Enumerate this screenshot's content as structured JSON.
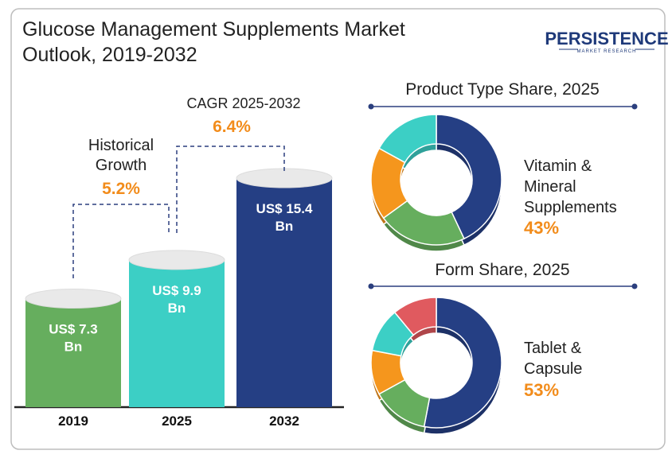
{
  "title_line1": "Glucose Management Supplements Market",
  "title_line2": "Outlook, 2019-2032",
  "logo": {
    "name": "PERSISTENCE",
    "tagline": "MARKET RESEARCH"
  },
  "annotations": {
    "historical_line1": "Historical",
    "historical_line2": "Growth",
    "historical_value": "5.2%",
    "cagr_label": "CAGR 2025-2032",
    "cagr_value": "6.4%"
  },
  "colors": {
    "green": "#66ae5e",
    "teal": "#3ccfc5",
    "navy": "#253f84",
    "orange": "#f5961d",
    "red": "#e05a5f",
    "accent_text": "#f28c1b"
  },
  "chart_data": [
    {
      "type": "bar",
      "categories": [
        "2019",
        "2025",
        "2032"
      ],
      "values": [
        7.3,
        9.9,
        15.4
      ],
      "value_labels": [
        [
          "US$ 7.3",
          "Bn"
        ],
        [
          "US$ 9.9",
          "Bn"
        ],
        [
          "US$ 15.4",
          "Bn"
        ]
      ],
      "bar_colors": [
        "#66ae5e",
        "#3ccfc5",
        "#253f84"
      ]
    },
    {
      "type": "pie",
      "title": "Product Type Share, 2025",
      "slices": [
        {
          "value": 43,
          "color": "#253f84"
        },
        {
          "value": 22,
          "color": "#66ae5e"
        },
        {
          "value": 18,
          "color": "#f5961d"
        },
        {
          "value": 17,
          "color": "#3ccfc5"
        }
      ],
      "highlight_label": [
        "Vitamin &",
        "Mineral",
        "Supplements"
      ],
      "highlight_value": "43%"
    },
    {
      "type": "pie",
      "title": "Form Share, 2025",
      "slices": [
        {
          "value": 53,
          "color": "#253f84"
        },
        {
          "value": 14,
          "color": "#66ae5e"
        },
        {
          "value": 11,
          "color": "#f5961d"
        },
        {
          "value": 11,
          "color": "#3ccfc5"
        },
        {
          "value": 11,
          "color": "#e05a5f"
        }
      ],
      "highlight_label": [
        "Tablet &",
        "Capsule"
      ],
      "highlight_value": "53%"
    }
  ]
}
